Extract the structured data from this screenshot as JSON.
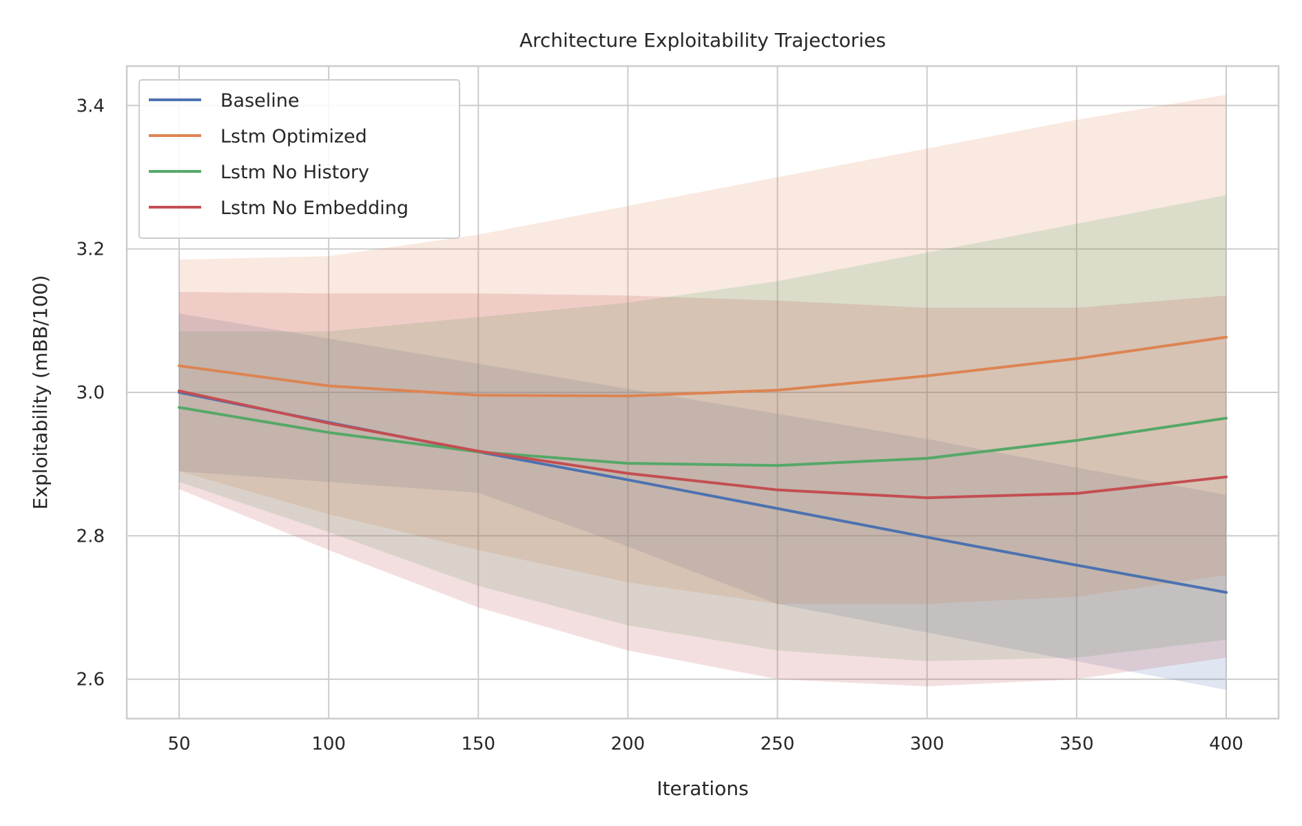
{
  "chart_data": {
    "type": "line",
    "title": "Architecture Exploitability Trajectories",
    "xlabel": "Iterations",
    "ylabel": "Exploitability (mBB/100)",
    "x": [
      50,
      100,
      150,
      200,
      250,
      300,
      350,
      400
    ],
    "xticks": [
      50,
      100,
      150,
      200,
      250,
      300,
      350,
      400
    ],
    "xtick_labels": [
      "50",
      "100",
      "150",
      "200",
      "250",
      "300",
      "350",
      "400"
    ],
    "yticks": [
      2.6,
      2.8,
      3.0,
      3.2,
      3.4
    ],
    "ytick_labels": [
      "2.6",
      "2.8",
      "3.0",
      "3.2",
      "3.4"
    ],
    "xlim": [
      32.5,
      417.5
    ],
    "ylim": [
      2.545,
      3.455
    ],
    "grid": true,
    "legend_position": "top-left",
    "series": [
      {
        "name": "Baseline",
        "color": "#4c72b0",
        "values": [
          3.0,
          2.958,
          2.917,
          2.878,
          2.838,
          2.798,
          2.759,
          2.721
        ],
        "lower": [
          2.89,
          2.875,
          2.86,
          2.785,
          2.705,
          2.665,
          2.625,
          2.585
        ],
        "upper": [
          3.11,
          3.075,
          3.04,
          3.005,
          2.97,
          2.935,
          2.895,
          2.857
        ]
      },
      {
        "name": "Lstm Optimized",
        "color": "#dd8452",
        "values": [
          3.037,
          3.009,
          2.996,
          2.995,
          3.003,
          3.023,
          3.047,
          3.077
        ],
        "lower": [
          2.89,
          2.83,
          2.78,
          2.735,
          2.705,
          2.705,
          2.715,
          2.745
        ],
        "upper": [
          3.185,
          3.19,
          3.22,
          3.26,
          3.3,
          3.34,
          3.38,
          3.415
        ]
      },
      {
        "name": "Lstm No History",
        "color": "#55a868",
        "values": [
          2.979,
          2.944,
          2.917,
          2.901,
          2.898,
          2.908,
          2.933,
          2.964
        ],
        "lower": [
          2.875,
          2.805,
          2.73,
          2.675,
          2.64,
          2.625,
          2.63,
          2.655
        ],
        "upper": [
          3.085,
          3.085,
          3.105,
          3.125,
          3.155,
          3.195,
          3.235,
          3.275
        ]
      },
      {
        "name": "Lstm No Embedding",
        "color": "#c44e52",
        "values": [
          3.002,
          2.957,
          2.918,
          2.887,
          2.864,
          2.853,
          2.859,
          2.882
        ],
        "lower": [
          2.865,
          2.78,
          2.7,
          2.64,
          2.6,
          2.59,
          2.6,
          2.63
        ],
        "upper": [
          3.14,
          3.138,
          3.138,
          3.135,
          3.128,
          3.118,
          3.118,
          3.135
        ]
      }
    ]
  }
}
